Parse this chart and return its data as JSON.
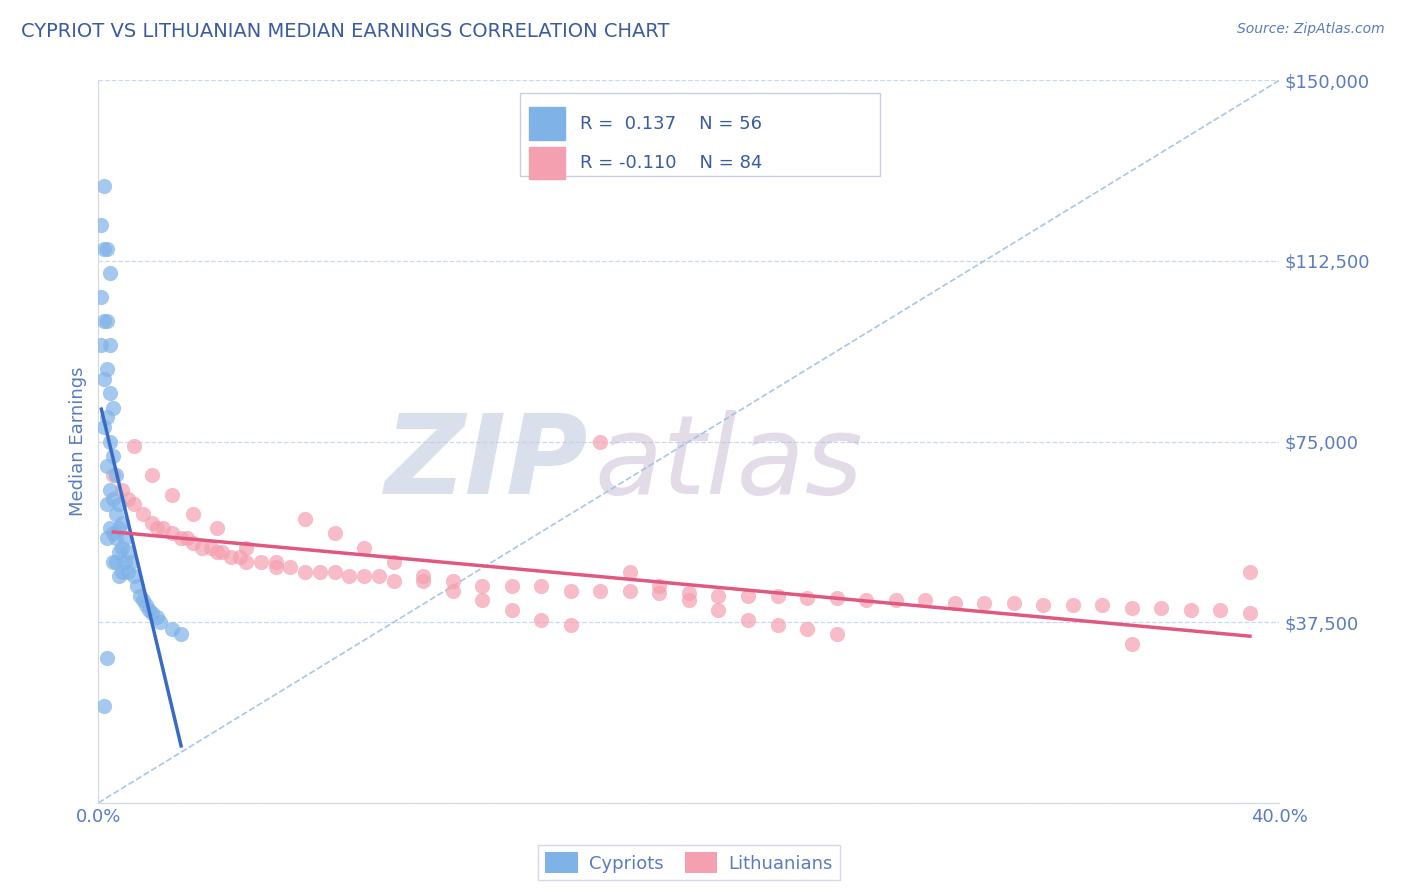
{
  "title": "CYPRIOT VS LITHUANIAN MEDIAN EARNINGS CORRELATION CHART",
  "source": "Source: ZipAtlas.com",
  "ylabel": "Median Earnings",
  "xlim": [
    0.0,
    0.4
  ],
  "ylim": [
    0,
    150000
  ],
  "yticks": [
    0,
    37500,
    75000,
    112500,
    150000
  ],
  "ytick_labels": [
    "",
    "$37,500",
    "$75,000",
    "$112,500",
    "$150,000"
  ],
  "xticks": [
    0.0,
    0.1,
    0.2,
    0.3,
    0.4
  ],
  "xtick_labels": [
    "0.0%",
    "",
    "",
    "",
    "40.0%"
  ],
  "cypriot_color": "#7fb3e8",
  "lithuanian_color": "#f4a0b0",
  "cypriot_line_color": "#3a6bc4",
  "lithuanian_line_color": "#e05880",
  "title_color": "#3a5ba0",
  "axis_label_color": "#5a7bbf",
  "tick_color": "#5a7bbf",
  "grid_color": "#c8d8f0",
  "diag_color": "#a0c0e0",
  "background_color": "#ffffff",
  "watermark_zip_color": "#c0cce0",
  "watermark_atlas_color": "#c8b8d0",
  "cypriot_scatter_x": [
    0.001,
    0.001,
    0.001,
    0.002,
    0.002,
    0.002,
    0.002,
    0.002,
    0.003,
    0.003,
    0.003,
    0.003,
    0.003,
    0.003,
    0.003,
    0.004,
    0.004,
    0.004,
    0.004,
    0.004,
    0.005,
    0.005,
    0.005,
    0.005,
    0.005,
    0.006,
    0.006,
    0.006,
    0.006,
    0.007,
    0.007,
    0.007,
    0.007,
    0.008,
    0.008,
    0.008,
    0.009,
    0.009,
    0.01,
    0.01,
    0.011,
    0.012,
    0.013,
    0.014,
    0.015,
    0.016,
    0.017,
    0.018,
    0.02,
    0.021,
    0.025,
    0.028,
    0.003,
    0.002,
    0.004
  ],
  "cypriot_scatter_y": [
    120000,
    105000,
    95000,
    128000,
    115000,
    100000,
    88000,
    78000,
    115000,
    100000,
    90000,
    80000,
    70000,
    62000,
    55000,
    95000,
    85000,
    75000,
    65000,
    57000,
    82000,
    72000,
    63000,
    56000,
    50000,
    68000,
    60000,
    55000,
    50000,
    62000,
    57000,
    52000,
    47000,
    58000,
    53000,
    48000,
    55000,
    50000,
    52000,
    48000,
    50000,
    47000,
    45000,
    43000,
    42000,
    41000,
    40000,
    39500,
    38500,
    37500,
    36000,
    35000,
    30000,
    20000,
    110000
  ],
  "lithuanian_scatter_x": [
    0.005,
    0.008,
    0.01,
    0.012,
    0.015,
    0.018,
    0.02,
    0.022,
    0.025,
    0.028,
    0.03,
    0.032,
    0.035,
    0.038,
    0.04,
    0.042,
    0.045,
    0.048,
    0.05,
    0.055,
    0.06,
    0.065,
    0.07,
    0.075,
    0.08,
    0.085,
    0.09,
    0.095,
    0.1,
    0.11,
    0.12,
    0.13,
    0.14,
    0.15,
    0.16,
    0.17,
    0.18,
    0.19,
    0.2,
    0.21,
    0.22,
    0.23,
    0.24,
    0.25,
    0.26,
    0.27,
    0.28,
    0.29,
    0.3,
    0.31,
    0.32,
    0.33,
    0.34,
    0.35,
    0.36,
    0.37,
    0.38,
    0.39,
    0.012,
    0.018,
    0.025,
    0.032,
    0.04,
    0.05,
    0.06,
    0.07,
    0.08,
    0.09,
    0.1,
    0.11,
    0.12,
    0.13,
    0.14,
    0.15,
    0.16,
    0.17,
    0.18,
    0.19,
    0.2,
    0.21,
    0.22,
    0.23,
    0.24,
    0.25,
    0.35,
    0.39
  ],
  "lithuanian_scatter_y": [
    68000,
    65000,
    63000,
    62000,
    60000,
    58000,
    57000,
    57000,
    56000,
    55000,
    55000,
    54000,
    53000,
    53000,
    52000,
    52000,
    51000,
    51000,
    50000,
    50000,
    49000,
    49000,
    48000,
    48000,
    48000,
    47000,
    47000,
    47000,
    46000,
    46000,
    46000,
    45000,
    45000,
    45000,
    44000,
    44000,
    44000,
    43500,
    43500,
    43000,
    43000,
    43000,
    42500,
    42500,
    42000,
    42000,
    42000,
    41500,
    41500,
    41500,
    41000,
    41000,
    41000,
    40500,
    40500,
    40000,
    40000,
    39500,
    74000,
    68000,
    64000,
    60000,
    57000,
    53000,
    50000,
    59000,
    56000,
    53000,
    50000,
    47000,
    44000,
    42000,
    40000,
    38000,
    37000,
    75000,
    48000,
    45000,
    42000,
    40000,
    38000,
    37000,
    36000,
    35000,
    33000,
    48000
  ]
}
